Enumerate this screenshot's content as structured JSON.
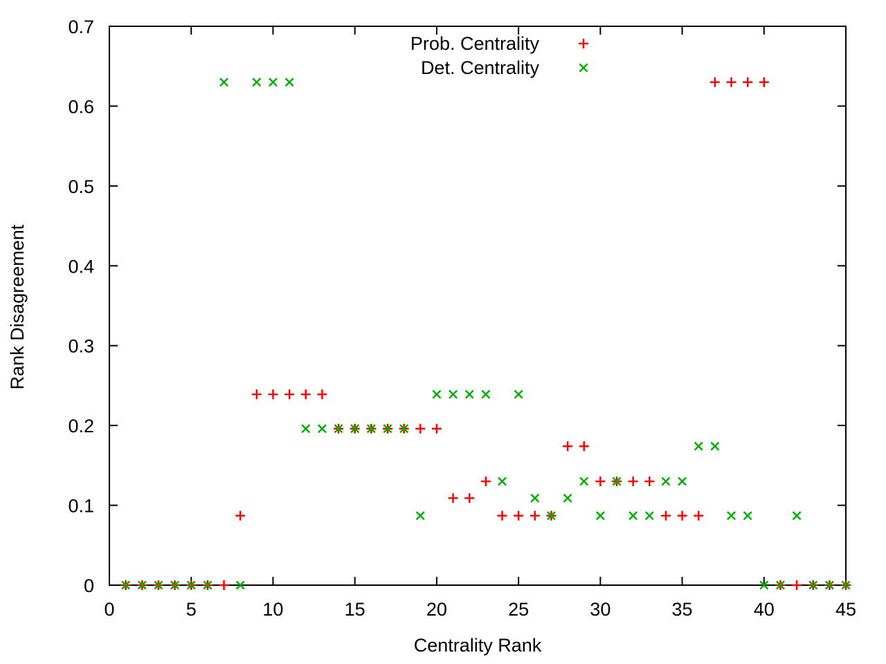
{
  "chart_data": {
    "type": "scatter",
    "title": "",
    "xlabel": "Centrality Rank",
    "ylabel": "Rank Disagreement",
    "xlim": [
      0,
      45
    ],
    "ylim": [
      0,
      0.7
    ],
    "xticks": [
      0,
      5,
      10,
      15,
      20,
      25,
      30,
      35,
      40,
      45
    ],
    "yticks": [
      0,
      0.1,
      0.2,
      0.3,
      0.4,
      0.5,
      0.6,
      0.7
    ],
    "ytick_labels": [
      "0",
      "0.1",
      "0.2",
      "0.3",
      "0.4",
      "0.5",
      "0.6",
      "0.7"
    ],
    "grid": false,
    "legend_position": "top-center",
    "series": [
      {
        "name": "Prob. Centrality",
        "marker": "plus",
        "color": "#ff0000",
        "points": [
          [
            1,
            0
          ],
          [
            2,
            0
          ],
          [
            3,
            0
          ],
          [
            4,
            0
          ],
          [
            5,
            0
          ],
          [
            6,
            0
          ],
          [
            7,
            0
          ],
          [
            8,
            0.087
          ],
          [
            9,
            0.239
          ],
          [
            10,
            0.239
          ],
          [
            11,
            0.239
          ],
          [
            12,
            0.239
          ],
          [
            13,
            0.239
          ],
          [
            14,
            0.196
          ],
          [
            15,
            0.196
          ],
          [
            16,
            0.196
          ],
          [
            17,
            0.196
          ],
          [
            18,
            0.196
          ],
          [
            19,
            0.196
          ],
          [
            20,
            0.196
          ],
          [
            21,
            0.109
          ],
          [
            22,
            0.109
          ],
          [
            23,
            0.13
          ],
          [
            24,
            0.087
          ],
          [
            25,
            0.087
          ],
          [
            26,
            0.087
          ],
          [
            27,
            0.087
          ],
          [
            28,
            0.174
          ],
          [
            29,
            0.174
          ],
          [
            30,
            0.13
          ],
          [
            31,
            0.13
          ],
          [
            32,
            0.13
          ],
          [
            33,
            0.13
          ],
          [
            34,
            0.087
          ],
          [
            35,
            0.087
          ],
          [
            36,
            0.087
          ],
          [
            37,
            0.63
          ],
          [
            38,
            0.63
          ],
          [
            39,
            0.63
          ],
          [
            40,
            0.63
          ],
          [
            41,
            0
          ],
          [
            42,
            0
          ],
          [
            43,
            0
          ],
          [
            44,
            0
          ],
          [
            45,
            0
          ]
        ]
      },
      {
        "name": "Det. Centrality",
        "marker": "cross",
        "color": "#00b000",
        "points": [
          [
            1,
            0
          ],
          [
            2,
            0
          ],
          [
            3,
            0
          ],
          [
            4,
            0
          ],
          [
            5,
            0
          ],
          [
            6,
            0
          ],
          [
            7,
            0.63
          ],
          [
            8,
            0
          ],
          [
            9,
            0.63
          ],
          [
            10,
            0.63
          ],
          [
            11,
            0.63
          ],
          [
            12,
            0.196
          ],
          [
            13,
            0.196
          ],
          [
            14,
            0.196
          ],
          [
            15,
            0.196
          ],
          [
            16,
            0.196
          ],
          [
            17,
            0.196
          ],
          [
            18,
            0.196
          ],
          [
            19,
            0.087
          ],
          [
            20,
            0.239
          ],
          [
            21,
            0.239
          ],
          [
            22,
            0.239
          ],
          [
            23,
            0.239
          ],
          [
            24,
            0.13
          ],
          [
            25,
            0.239
          ],
          [
            26,
            0.109
          ],
          [
            27,
            0.087
          ],
          [
            28,
            0.109
          ],
          [
            29,
            0.13
          ],
          [
            30,
            0.087
          ],
          [
            31,
            0.13
          ],
          [
            32,
            0.087
          ],
          [
            33,
            0.087
          ],
          [
            34,
            0.13
          ],
          [
            35,
            0.13
          ],
          [
            36,
            0.174
          ],
          [
            37,
            0.174
          ],
          [
            38,
            0.087
          ],
          [
            39,
            0.087
          ],
          [
            40,
            0
          ],
          [
            41,
            0
          ],
          [
            42,
            0.087
          ],
          [
            43,
            0
          ],
          [
            44,
            0
          ],
          [
            45,
            0
          ]
        ]
      }
    ]
  }
}
